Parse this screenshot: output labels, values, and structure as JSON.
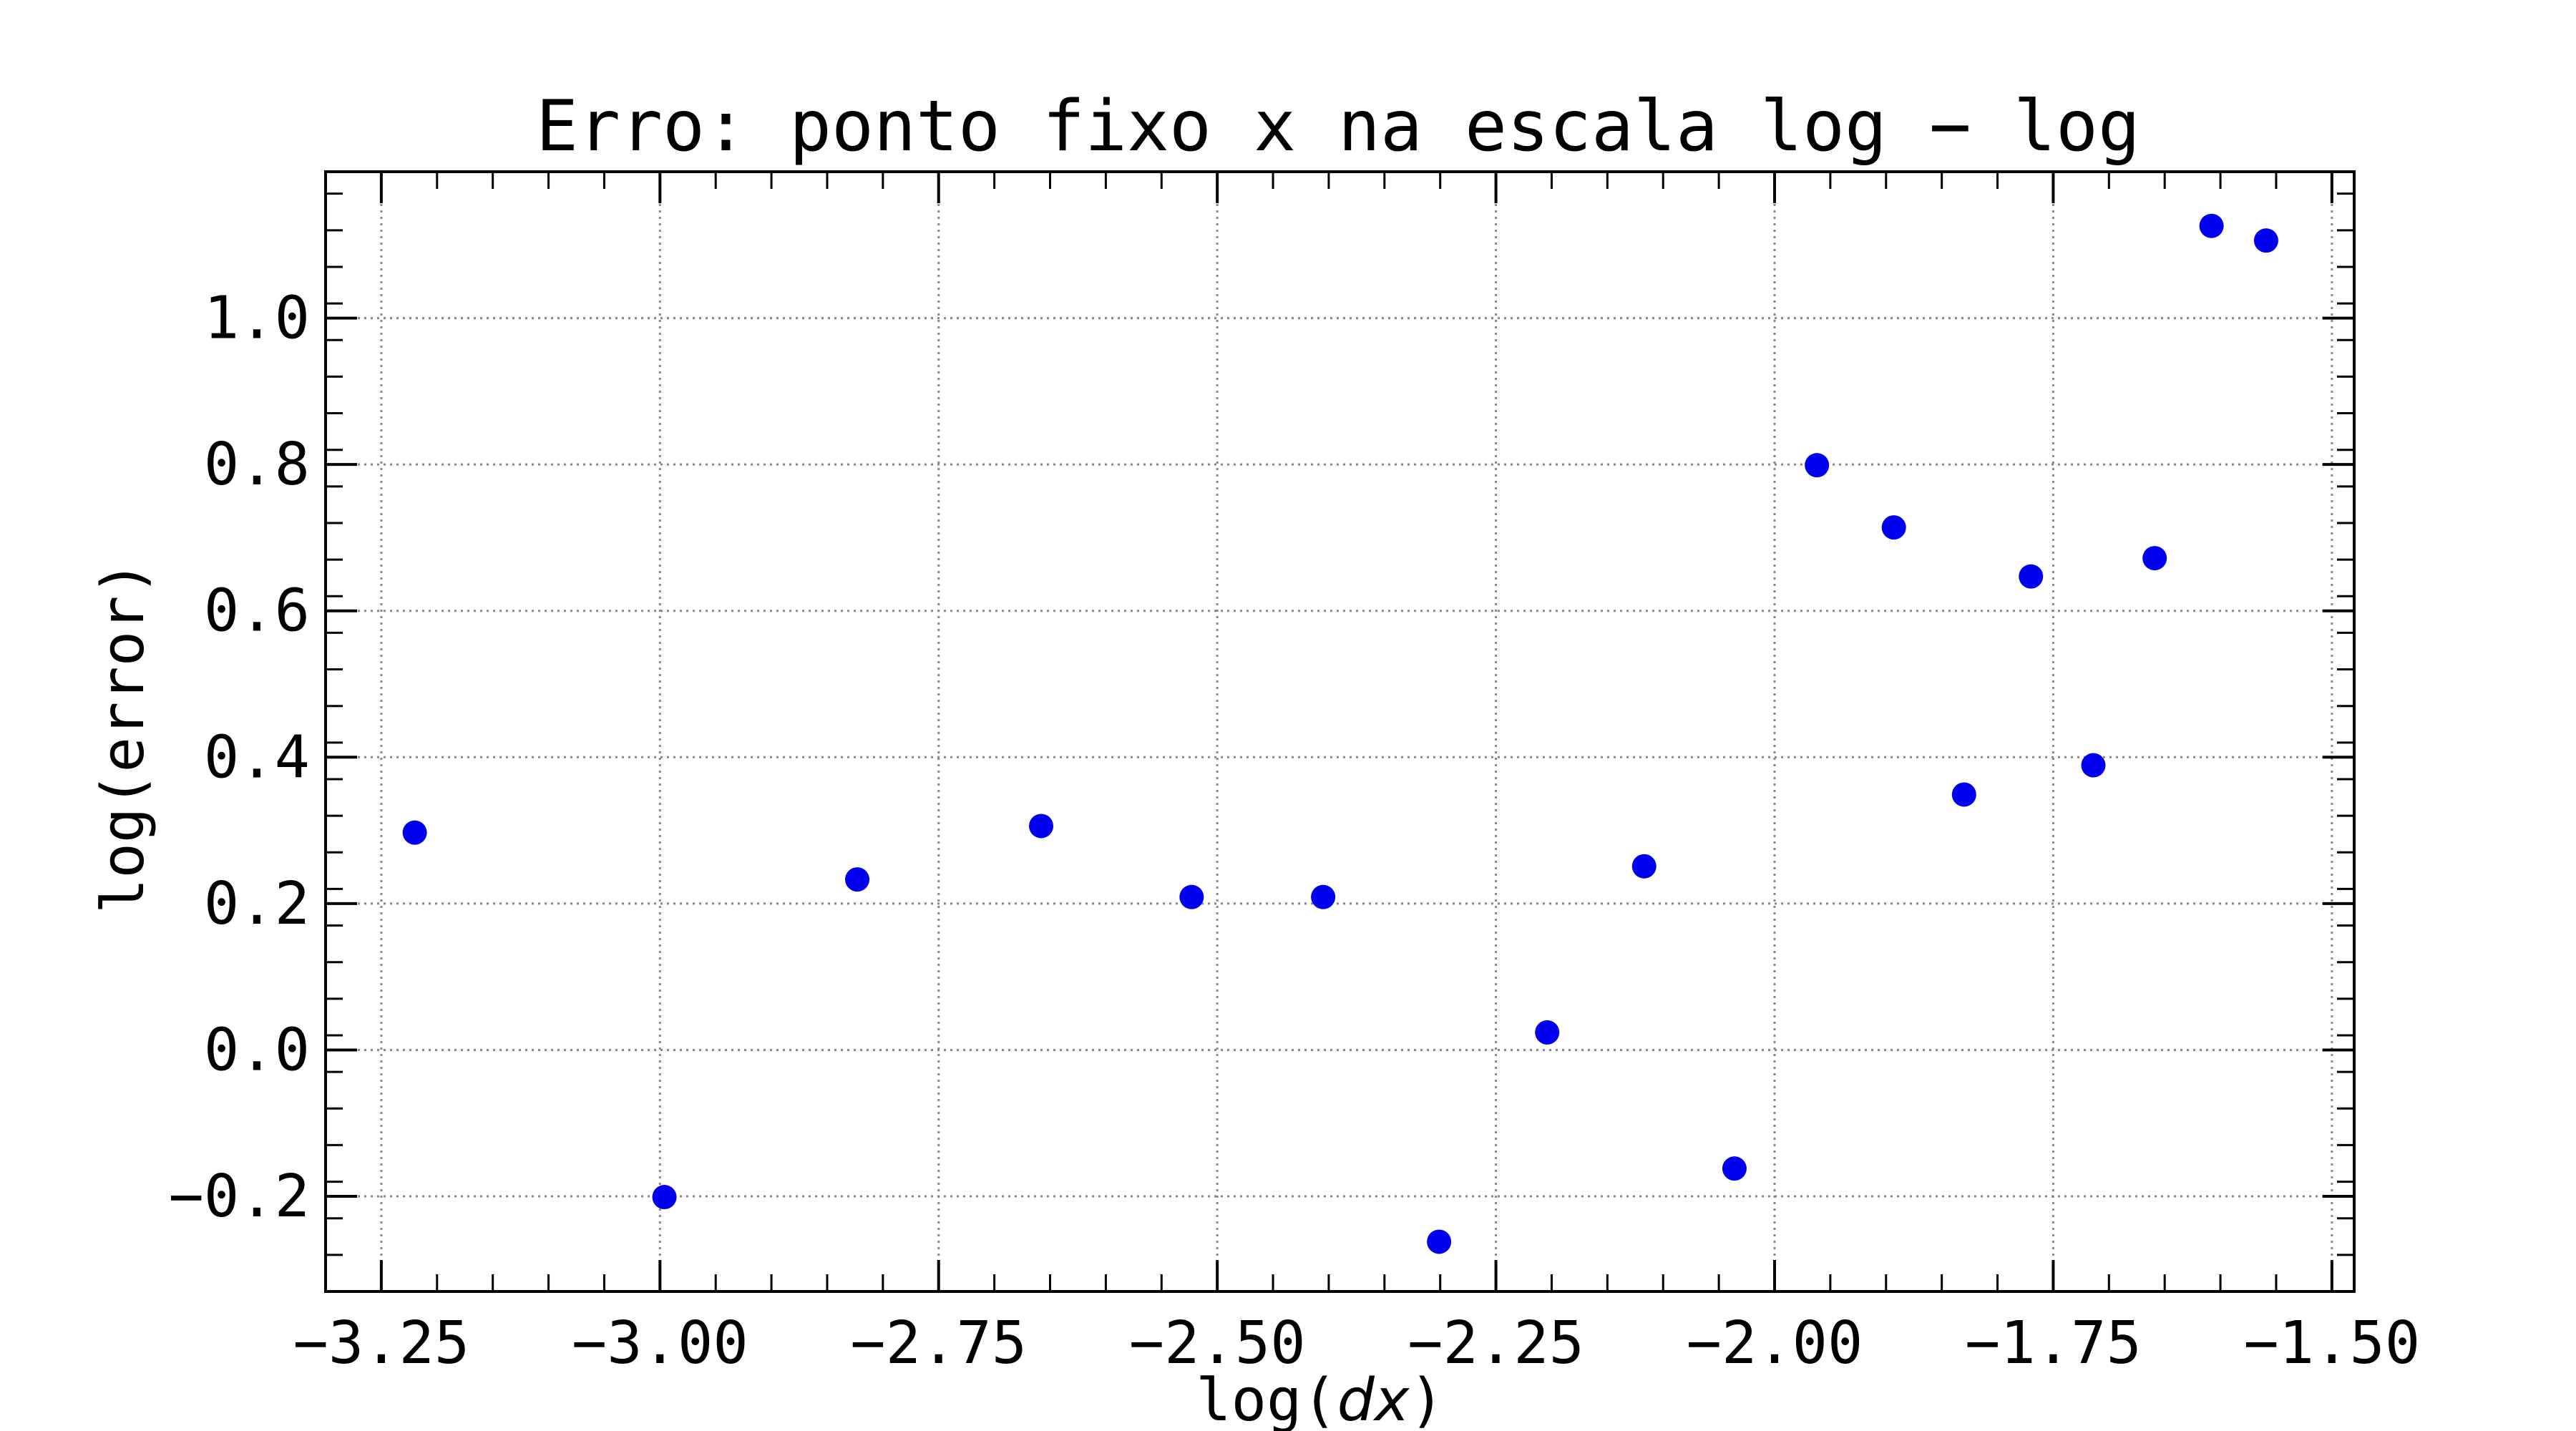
{
  "chart_data": {
    "type": "scatter",
    "title": "Erro: ponto fixo x na escala log − log",
    "xlabel": {
      "prefix": "log(",
      "var": "dx",
      "suffix": ")"
    },
    "ylabel": "log(error)",
    "xlim": [
      -3.3,
      -1.48
    ],
    "ylim": [
      -0.33,
      1.2
    ],
    "x_ticks": [
      -3.25,
      -3.0,
      -2.75,
      -2.5,
      -2.25,
      -2.0,
      -1.75,
      -1.5
    ],
    "x_tick_labels": [
      "−3.25",
      "−3.00",
      "−2.75",
      "−2.50",
      "−2.25",
      "−2.00",
      "−1.75",
      "−1.50"
    ],
    "y_ticks": [
      -0.2,
      0.0,
      0.2,
      0.4,
      0.6,
      0.8,
      1.0
    ],
    "y_tick_labels": [
      "−0.2",
      "0.0",
      "0.2",
      "0.4",
      "0.6",
      "0.8",
      "1.0"
    ],
    "grid": true,
    "marker_color": "#0000ee",
    "series": [
      {
        "points": [
          {
            "x": -3.22,
            "y": 0.297
          },
          {
            "x": -2.996,
            "y": -0.201
          },
          {
            "x": -2.823,
            "y": 0.233
          },
          {
            "x": -2.658,
            "y": 0.306
          },
          {
            "x": -2.523,
            "y": 0.209
          },
          {
            "x": -2.405,
            "y": 0.209
          },
          {
            "x": -2.301,
            "y": -0.262
          },
          {
            "x": -2.204,
            "y": 0.024
          },
          {
            "x": -2.117,
            "y": 0.251
          },
          {
            "x": -2.036,
            "y": -0.162
          },
          {
            "x": -1.962,
            "y": 0.799
          },
          {
            "x": -1.893,
            "y": 0.714
          },
          {
            "x": -1.83,
            "y": 0.349
          },
          {
            "x": -1.77,
            "y": 0.647
          },
          {
            "x": -1.714,
            "y": 0.389
          },
          {
            "x": -1.659,
            "y": 0.672
          },
          {
            "x": -1.608,
            "y": 1.126
          },
          {
            "x": -1.559,
            "y": 1.106
          }
        ]
      }
    ]
  }
}
